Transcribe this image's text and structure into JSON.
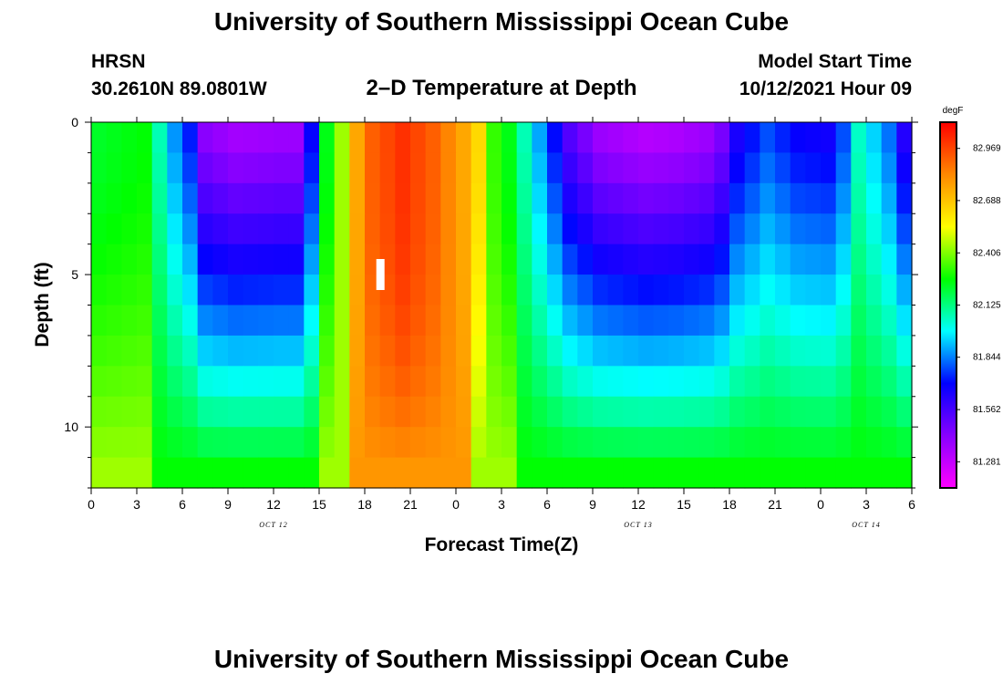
{
  "page": {
    "top_title": "University of Southern Mississippi Ocean Cube",
    "bottom_title": "University of Southern Mississippi Ocean Cube",
    "station": "HRSN",
    "coords": "30.2610N  89.0801W",
    "model_start_label": "Model Start Time",
    "model_start_value": "10/12/2021 Hour 09"
  },
  "chart_data": {
    "type": "heatmap",
    "title": "2–D Temperature at Depth",
    "xlabel": "Forecast Time(Z)",
    "ylabel": "Depth (ft)",
    "x_tick_labels": [
      "0",
      "3",
      "6",
      "9",
      "12",
      "15",
      "18",
      "21",
      "0",
      "3",
      "6",
      "9",
      "12",
      "15",
      "18",
      "21",
      "0",
      "3",
      "6"
    ],
    "date_labels": [
      {
        "text": "OCT 12",
        "at_tick": 4
      },
      {
        "text": "OCT 13",
        "at_tick": 12
      },
      {
        "text": "OCT 14",
        "at_tick": 17
      }
    ],
    "y_ticks": [
      0,
      5,
      10
    ],
    "ylim": [
      0,
      12
    ],
    "y_inverted": true,
    "colorbar": {
      "unit": "degF",
      "tick_labels": [
        "82.969",
        "82.688",
        "82.406",
        "82.125",
        "81.844",
        "81.562",
        "81.281"
      ],
      "tick_values": [
        82.969,
        82.688,
        82.406,
        82.125,
        81.844,
        81.562,
        81.281
      ],
      "range": [
        81.14,
        83.11
      ]
    },
    "current_time_marker": {
      "x_hour": 19
    },
    "columns": 54,
    "depth_levels": 12,
    "grid": false,
    "notes_visible": "Heatmap of water temperature by depth (rows) and forecast time (columns)"
  },
  "colors": {
    "palette": [
      "#ff00ff",
      "#8800ff",
      "#0000ff",
      "#00ffff",
      "#00ff00",
      "#ffff00",
      "#ff8800",
      "#ff0000"
    ]
  }
}
